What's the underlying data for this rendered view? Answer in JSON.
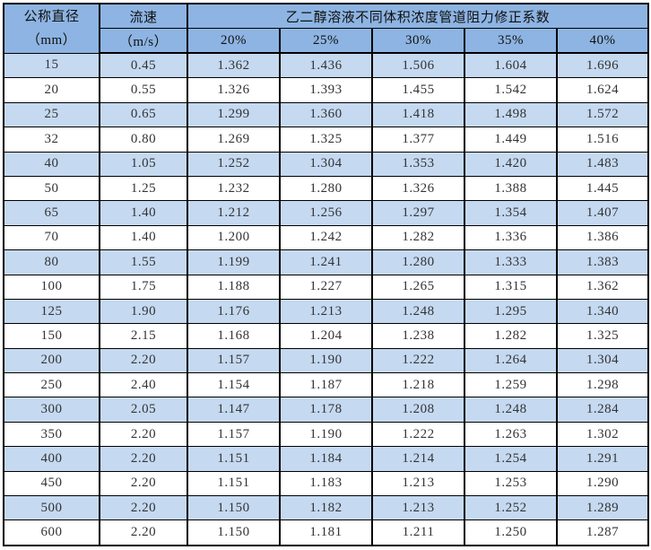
{
  "colors": {
    "header_bg": "#8DB4E2",
    "alt_row_bg": "#C5D9F1",
    "border": "#000000"
  },
  "table": {
    "header": {
      "diameter_title": "公称直径",
      "diameter_unit": "（mm）",
      "velocity_title": "流速",
      "velocity_unit": "（m/s）",
      "span_title": "乙二醇溶液不同体积浓度管道阻力修正系数",
      "concentrations": [
        "20%",
        "25%",
        "30%",
        "35%",
        "40%"
      ]
    },
    "rows": [
      {
        "diameter": "15",
        "velocity": "0.45",
        "coefficients": [
          "1.362",
          "1.436",
          "1.506",
          "1.604",
          "1.696"
        ]
      },
      {
        "diameter": "20",
        "velocity": "0.55",
        "coefficients": [
          "1.326",
          "1.393",
          "1.455",
          "1.542",
          "1.624"
        ]
      },
      {
        "diameter": "25",
        "velocity": "0.65",
        "coefficients": [
          "1.299",
          "1.360",
          "1.418",
          "1.498",
          "1.572"
        ]
      },
      {
        "diameter": "32",
        "velocity": "0.80",
        "coefficients": [
          "1.269",
          "1.325",
          "1.377",
          "1.449",
          "1.516"
        ]
      },
      {
        "diameter": "40",
        "velocity": "1.05",
        "coefficients": [
          "1.252",
          "1.304",
          "1.353",
          "1.420",
          "1.483"
        ]
      },
      {
        "diameter": "50",
        "velocity": "1.25",
        "coefficients": [
          "1.232",
          "1.280",
          "1.326",
          "1.388",
          "1.445"
        ]
      },
      {
        "diameter": "65",
        "velocity": "1.40",
        "coefficients": [
          "1.212",
          "1.256",
          "1.297",
          "1.354",
          "1.407"
        ]
      },
      {
        "diameter": "70",
        "velocity": "1.40",
        "coefficients": [
          "1.200",
          "1.242",
          "1.282",
          "1.336",
          "1.386"
        ]
      },
      {
        "diameter": "80",
        "velocity": "1.55",
        "coefficients": [
          "1.199",
          "1.241",
          "1.280",
          "1.333",
          "1.383"
        ]
      },
      {
        "diameter": "100",
        "velocity": "1.75",
        "coefficients": [
          "1.188",
          "1.227",
          "1.265",
          "1.315",
          "1.362"
        ]
      },
      {
        "diameter": "125",
        "velocity": "1.90",
        "coefficients": [
          "1.176",
          "1.213",
          "1.248",
          "1.295",
          "1.340"
        ]
      },
      {
        "diameter": "150",
        "velocity": "2.15",
        "coefficients": [
          "1.168",
          "1.204",
          "1.238",
          "1.282",
          "1.325"
        ]
      },
      {
        "diameter": "200",
        "velocity": "2.20",
        "coefficients": [
          "1.157",
          "1.190",
          "1.222",
          "1.264",
          "1.304"
        ]
      },
      {
        "diameter": "250",
        "velocity": "2.40",
        "coefficients": [
          "1.154",
          "1.187",
          "1.218",
          "1.259",
          "1.298"
        ]
      },
      {
        "diameter": "300",
        "velocity": "2.05",
        "coefficients": [
          "1.147",
          "1.178",
          "1.208",
          "1.248",
          "1.284"
        ]
      },
      {
        "diameter": "350",
        "velocity": "2.20",
        "coefficients": [
          "1.157",
          "1.190",
          "1.222",
          "1.263",
          "1.302"
        ]
      },
      {
        "diameter": "400",
        "velocity": "2.20",
        "coefficients": [
          "1.151",
          "1.184",
          "1.214",
          "1.254",
          "1.291"
        ]
      },
      {
        "diameter": "450",
        "velocity": "2.20",
        "coefficients": [
          "1.151",
          "1.183",
          "1.213",
          "1.253",
          "1.290"
        ]
      },
      {
        "diameter": "500",
        "velocity": "2.20",
        "coefficients": [
          "1.150",
          "1.182",
          "1.213",
          "1.252",
          "1.289"
        ]
      },
      {
        "diameter": "600",
        "velocity": "2.20",
        "coefficients": [
          "1.150",
          "1.181",
          "1.211",
          "1.250",
          "1.287"
        ]
      }
    ]
  }
}
